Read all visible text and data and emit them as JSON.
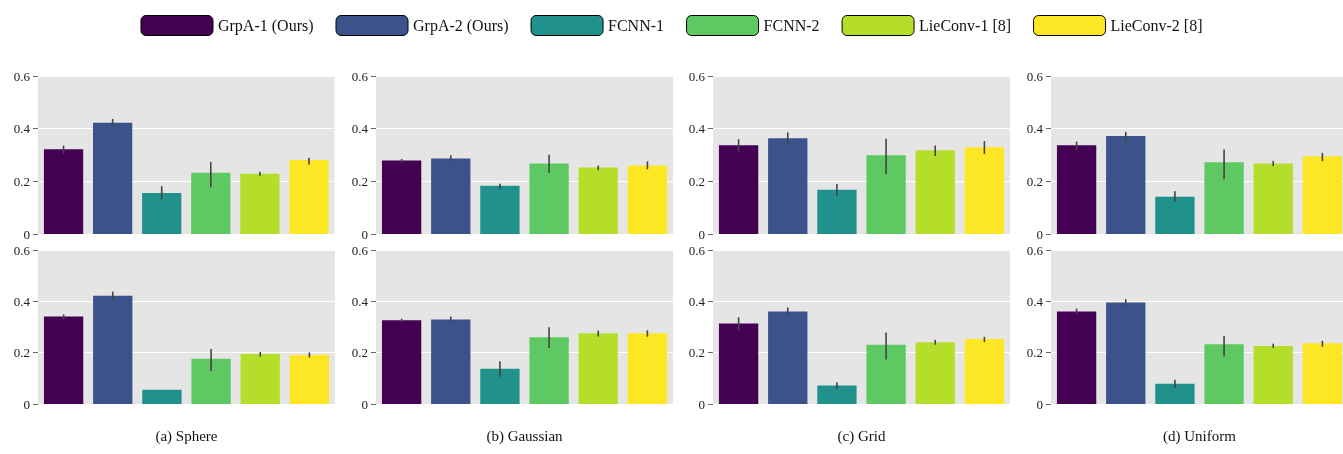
{
  "chart_data": [
    {
      "type": "bar",
      "categories": [
        null
      ],
      "ylim": [
        0,
        0.6
      ],
      "yticks": [
        0,
        0.2,
        0.4,
        0.6
      ],
      "grid": "y",
      "legend": "top",
      "series": [
        {
          "name": "GrpA-1 (Ours)",
          "color": "#440154",
          "values": [
            0.322
          ],
          "errors": [
            [
              0.304,
              0.336
            ]
          ]
        },
        {
          "name": "GrpA-2 (Ours)",
          "color": "#3b528b",
          "values": [
            0.422
          ],
          "errors": [
            [
              0.408,
              0.437
            ]
          ]
        },
        {
          "name": "FCNN-1",
          "color": "#21918c",
          "values": [
            0.156
          ],
          "errors": [
            [
              0.131,
              0.182
            ]
          ]
        },
        {
          "name": "FCNN-2",
          "color": "#5ec962",
          "values": [
            0.233
          ],
          "errors": [
            [
              0.177,
              0.274
            ]
          ]
        },
        {
          "name": "LieConv-1 [8]",
          "color": "#b5de2b",
          "values": [
            0.229
          ],
          "errors": [
            [
              0.221,
              0.236
            ]
          ]
        },
        {
          "name": "LieConv-2 [8]",
          "color": "#fde725",
          "values": [
            0.281
          ],
          "errors": [
            [
              0.264,
              0.29
            ]
          ]
        }
      ]
    },
    {
      "type": "bar",
      "categories": [
        null
      ],
      "ylim": [
        0,
        0.6
      ],
      "yticks": [
        0,
        0.2,
        0.4,
        0.6
      ],
      "grid": "y",
      "series": [
        {
          "color": "#440154",
          "values": [
            0.279
          ],
          "errors": [
            [
              0.272,
              0.285
            ]
          ]
        },
        {
          "color": "#3b528b",
          "values": [
            0.287
          ],
          "errors": [
            [
              0.276,
              0.299
            ]
          ]
        },
        {
          "color": "#21918c",
          "values": [
            0.183
          ],
          "errors": [
            [
              0.171,
              0.191
            ]
          ]
        },
        {
          "color": "#5ec962",
          "values": [
            0.268
          ],
          "errors": [
            [
              0.233,
              0.301
            ]
          ]
        },
        {
          "color": "#b5de2b",
          "values": [
            0.253
          ],
          "errors": [
            [
              0.242,
              0.26
            ]
          ]
        },
        {
          "color": "#fde725",
          "values": [
            0.26
          ],
          "errors": [
            [
              0.246,
              0.276
            ]
          ]
        }
      ]
    },
    {
      "type": "bar",
      "categories": [
        null
      ],
      "ylim": [
        0,
        0.6
      ],
      "yticks": [
        0,
        0.2,
        0.4,
        0.6
      ],
      "grid": "y",
      "series": [
        {
          "color": "#440154",
          "values": [
            0.337
          ],
          "errors": [
            [
              0.312,
              0.36
            ]
          ]
        },
        {
          "color": "#3b528b",
          "values": [
            0.364
          ],
          "errors": [
            [
              0.341,
              0.386
            ]
          ]
        },
        {
          "color": "#21918c",
          "values": [
            0.168
          ],
          "errors": [
            [
              0.145,
              0.19
            ]
          ]
        },
        {
          "color": "#5ec962",
          "values": [
            0.299
          ],
          "errors": [
            [
              0.227,
              0.362
            ]
          ]
        },
        {
          "color": "#b5de2b",
          "values": [
            0.318
          ],
          "errors": [
            [
              0.296,
              0.336
            ]
          ]
        },
        {
          "color": "#fde725",
          "values": [
            0.329
          ],
          "errors": [
            [
              0.304,
              0.353
            ]
          ]
        }
      ]
    },
    {
      "type": "bar",
      "categories": [
        null
      ],
      "ylim": [
        0,
        0.6
      ],
      "yticks": [
        0,
        0.2,
        0.4,
        0.6
      ],
      "grid": "y",
      "series": [
        {
          "color": "#440154",
          "values": [
            0.337
          ],
          "errors": [
            [
              0.318,
              0.351
            ]
          ]
        },
        {
          "color": "#3b528b",
          "values": [
            0.372
          ],
          "errors": [
            [
              0.35,
              0.388
            ]
          ]
        },
        {
          "color": "#21918c",
          "values": [
            0.141
          ],
          "errors": [
            [
              0.122,
              0.162
            ]
          ]
        },
        {
          "color": "#5ec962",
          "values": [
            0.272
          ],
          "errors": [
            [
              0.208,
              0.321
            ]
          ]
        },
        {
          "color": "#b5de2b",
          "values": [
            0.268
          ],
          "errors": [
            [
              0.258,
              0.278
            ]
          ]
        },
        {
          "color": "#fde725",
          "values": [
            0.295
          ],
          "errors": [
            [
              0.277,
              0.308
            ]
          ]
        }
      ]
    },
    {
      "type": "bar",
      "categories": [
        null
      ],
      "xlabel": "(a) Sphere",
      "ylim": [
        0,
        0.6
      ],
      "yticks": [
        0,
        0.2,
        0.4,
        0.6
      ],
      "grid": "y",
      "series": [
        {
          "color": "#440154",
          "values": [
            0.341
          ],
          "errors": [
            [
              0.331,
              0.349
            ]
          ]
        },
        {
          "color": "#3b528b",
          "values": [
            0.422
          ],
          "errors": [
            [
              0.404,
              0.438
            ]
          ]
        },
        {
          "color": "#21918c",
          "values": [
            0.056
          ]
        },
        {
          "color": "#5ec962",
          "values": [
            0.176
          ],
          "errors": [
            [
              0.128,
              0.214
            ]
          ]
        },
        {
          "color": "#b5de2b",
          "values": [
            0.195
          ],
          "errors": [
            [
              0.185,
              0.203
            ]
          ]
        },
        {
          "color": "#fde725",
          "values": [
            0.191
          ],
          "errors": [
            [
              0.181,
              0.201
            ]
          ]
        }
      ]
    },
    {
      "type": "bar",
      "categories": [
        null
      ],
      "xlabel": "(b) Gaussian",
      "ylim": [
        0,
        0.6
      ],
      "yticks": [
        0,
        0.2,
        0.4,
        0.6
      ],
      "grid": "y",
      "series": [
        {
          "color": "#440154",
          "values": [
            0.326
          ],
          "errors": [
            [
              0.318,
              0.332
            ]
          ]
        },
        {
          "color": "#3b528b",
          "values": [
            0.329
          ],
          "errors": [
            [
              0.318,
              0.341
            ]
          ]
        },
        {
          "color": "#21918c",
          "values": [
            0.137
          ],
          "errors": [
            [
              0.106,
              0.167
            ]
          ]
        },
        {
          "color": "#5ec962",
          "values": [
            0.26
          ],
          "errors": [
            [
              0.218,
              0.299
            ]
          ]
        },
        {
          "color": "#b5de2b",
          "values": [
            0.276
          ],
          "errors": [
            [
              0.263,
              0.286
            ]
          ]
        },
        {
          "color": "#fde725",
          "values": [
            0.276
          ],
          "errors": [
            [
              0.262,
              0.287
            ]
          ]
        }
      ]
    },
    {
      "type": "bar",
      "categories": [
        null
      ],
      "xlabel": "(c) Grid",
      "ylim": [
        0,
        0.6
      ],
      "yticks": [
        0,
        0.2,
        0.4,
        0.6
      ],
      "grid": "y",
      "series": [
        {
          "color": "#440154",
          "values": [
            0.314
          ],
          "errors": [
            [
              0.286,
              0.338
            ]
          ]
        },
        {
          "color": "#3b528b",
          "values": [
            0.36
          ],
          "errors": [
            [
              0.345,
              0.376
            ]
          ]
        },
        {
          "color": "#21918c",
          "values": [
            0.072
          ],
          "errors": [
            [
              0.058,
              0.085
            ]
          ]
        },
        {
          "color": "#5ec962",
          "values": [
            0.231
          ],
          "errors": [
            [
              0.173,
              0.279
            ]
          ]
        },
        {
          "color": "#b5de2b",
          "values": [
            0.241
          ],
          "errors": [
            [
              0.231,
              0.25
            ]
          ]
        },
        {
          "color": "#fde725",
          "values": [
            0.253
          ],
          "errors": [
            [
              0.241,
              0.262
            ]
          ]
        }
      ]
    },
    {
      "type": "bar",
      "categories": [
        null
      ],
      "xlabel": "(d) Uniform",
      "ylim": [
        0,
        0.6
      ],
      "yticks": [
        0,
        0.2,
        0.4,
        0.6
      ],
      "grid": "y",
      "series": [
        {
          "color": "#440154",
          "values": [
            0.36
          ],
          "errors": [
            [
              0.35,
              0.372
            ]
          ]
        },
        {
          "color": "#3b528b",
          "values": [
            0.395
          ],
          "errors": [
            [
              0.381,
              0.408
            ]
          ]
        },
        {
          "color": "#21918c",
          "values": [
            0.079
          ],
          "errors": [
            [
              0.062,
              0.094
            ]
          ]
        },
        {
          "color": "#5ec962",
          "values": [
            0.233
          ],
          "errors": [
            [
              0.185,
              0.265
            ]
          ]
        },
        {
          "color": "#b5de2b",
          "values": [
            0.226
          ],
          "errors": [
            [
              0.218,
              0.235
            ]
          ]
        },
        {
          "color": "#fde725",
          "values": [
            0.237
          ],
          "errors": [
            [
              0.223,
              0.246
            ]
          ]
        }
      ]
    }
  ]
}
